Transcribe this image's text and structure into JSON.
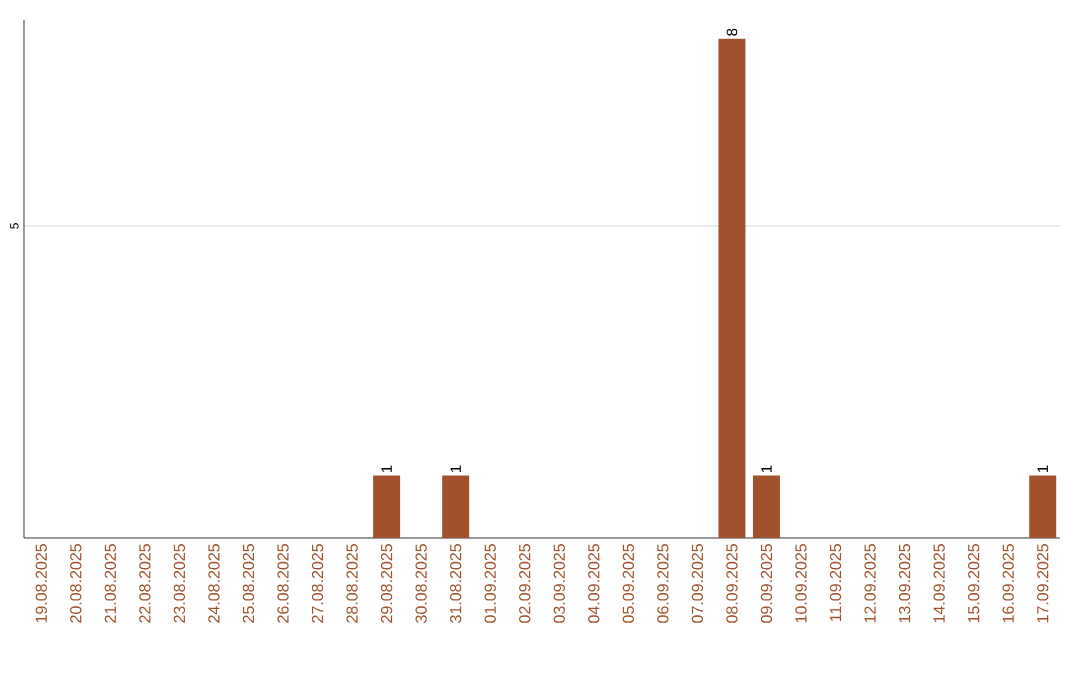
{
  "chart_data": {
    "type": "bar",
    "categories": [
      "19.08.2025",
      "20.08.2025",
      "21.08.2025",
      "22.08.2025",
      "23.08.2025",
      "24.08.2025",
      "25.08.2025",
      "26.08.2025",
      "27.08.2025",
      "28.08.2025",
      "29.08.2025",
      "30.08.2025",
      "31.08.2025",
      "01.09.2025",
      "02.09.2025",
      "03.09.2025",
      "04.09.2025",
      "05.09.2025",
      "06.09.2025",
      "07.09.2025",
      "08.09.2025",
      "09.09.2025",
      "10.09.2025",
      "11.09.2025",
      "12.09.2025",
      "13.09.2025",
      "14.09.2025",
      "15.09.2025",
      "16.09.2025",
      "17.09.2025"
    ],
    "values": [
      0,
      0,
      0,
      0,
      0,
      0,
      0,
      0,
      0,
      0,
      1,
      0,
      1,
      0,
      0,
      0,
      0,
      0,
      0,
      0,
      8,
      1,
      0,
      0,
      0,
      0,
      0,
      0,
      0,
      1
    ],
    "value_labels": [
      null,
      null,
      null,
      null,
      null,
      null,
      null,
      null,
      null,
      null,
      "1",
      null,
      "1",
      null,
      null,
      null,
      null,
      null,
      null,
      null,
      "8",
      "1",
      null,
      null,
      null,
      null,
      null,
      null,
      null,
      "1"
    ],
    "color": "#a0522d",
    "ylim": [
      0,
      8.3
    ],
    "yticks": [
      5
    ],
    "grid": "y"
  }
}
